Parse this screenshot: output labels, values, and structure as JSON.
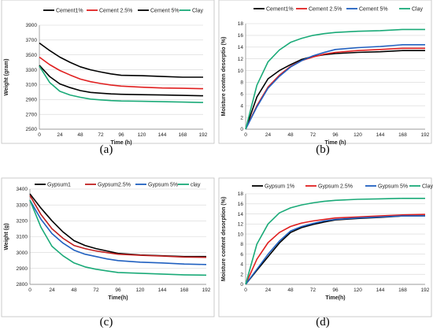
{
  "chart_data": [
    {
      "panel": "a",
      "caption": "(a)",
      "type": "line",
      "xlabel": "Time (h)",
      "ylabel": "Weight (gram)",
      "xlim": [
        0,
        192
      ],
      "ylim": [
        2500,
        3900
      ],
      "xticks": [
        0,
        24,
        48,
        72,
        96,
        120,
        144,
        168,
        192
      ],
      "yticks": [
        2500,
        2700,
        2900,
        3100,
        3300,
        3500,
        3700,
        3900
      ],
      "grid": "horizontal",
      "legend": "top",
      "series": [
        {
          "name": "Cement1%",
          "color": "#000000",
          "x": [
            0,
            12,
            24,
            36,
            48,
            60,
            72,
            84,
            96,
            120,
            144,
            168,
            192
          ],
          "y": [
            3660,
            3560,
            3470,
            3400,
            3340,
            3300,
            3270,
            3245,
            3225,
            3220,
            3210,
            3200,
            3200
          ]
        },
        {
          "name": "Cement 2.5%",
          "color": "#e02020",
          "x": [
            0,
            12,
            24,
            36,
            48,
            60,
            72,
            84,
            96,
            120,
            144,
            168,
            192
          ],
          "y": [
            3470,
            3370,
            3290,
            3230,
            3175,
            3140,
            3115,
            3095,
            3080,
            3065,
            3055,
            3050,
            3045
          ]
        },
        {
          "name": "Cement 5%",
          "color": "#000000",
          "x": [
            0,
            12,
            24,
            36,
            48,
            60,
            72,
            84,
            96,
            120,
            144,
            168,
            192
          ],
          "y": [
            3360,
            3210,
            3110,
            3060,
            3020,
            2995,
            2985,
            2975,
            2970,
            2965,
            2960,
            2955,
            2950
          ]
        },
        {
          "name": "Clay",
          "color": "#1aaa78",
          "x": [
            0,
            12,
            24,
            36,
            48,
            60,
            72,
            84,
            96,
            120,
            144,
            168,
            192
          ],
          "y": [
            3350,
            3130,
            3010,
            2960,
            2930,
            2905,
            2895,
            2885,
            2880,
            2875,
            2870,
            2865,
            2860
          ]
        }
      ]
    },
    {
      "panel": "b",
      "caption": "(b)",
      "type": "line",
      "xlabel": "Time (h)",
      "ylabel": "Moisture conten desorptio (%)",
      "xlim": [
        0,
        192
      ],
      "ylim": [
        0,
        18
      ],
      "xticks": [
        0,
        24,
        48,
        72,
        96,
        120,
        144,
        168,
        192
      ],
      "yticks": [
        0,
        2,
        4,
        6,
        8,
        10,
        12,
        14,
        16,
        18
      ],
      "grid": "horizontal",
      "legend": "top",
      "series": [
        {
          "name": "Cement1%",
          "color": "#000000",
          "x": [
            0,
            12,
            24,
            36,
            48,
            60,
            72,
            84,
            96,
            120,
            144,
            168,
            192
          ],
          "y": [
            0,
            5.5,
            8.6,
            10.0,
            11.0,
            11.9,
            12.4,
            12.7,
            12.9,
            13.1,
            13.2,
            13.4,
            13.4
          ]
        },
        {
          "name": "Cement 2.5%",
          "color": "#e02020",
          "x": [
            0,
            12,
            24,
            36,
            48,
            60,
            72,
            84,
            96,
            120,
            144,
            168,
            192
          ],
          "y": [
            0,
            4.0,
            7.2,
            9.2,
            10.7,
            11.7,
            12.3,
            12.8,
            13.1,
            13.4,
            13.6,
            13.8,
            13.8
          ]
        },
        {
          "name": "Cement 5%",
          "color": "#2060c0",
          "x": [
            0,
            12,
            24,
            36,
            48,
            60,
            72,
            84,
            96,
            120,
            144,
            168,
            192
          ],
          "y": [
            0,
            3.8,
            7.0,
            9.0,
            10.6,
            11.7,
            12.5,
            13.1,
            13.6,
            13.9,
            14.1,
            14.4,
            14.4
          ]
        },
        {
          "name": "Clay",
          "color": "#1aaa78",
          "x": [
            0,
            12,
            24,
            36,
            48,
            60,
            72,
            84,
            96,
            120,
            144,
            168,
            192
          ],
          "y": [
            0,
            7.5,
            11.5,
            13.5,
            14.8,
            15.5,
            16.0,
            16.3,
            16.5,
            16.7,
            16.8,
            17.0,
            17.0
          ]
        }
      ]
    },
    {
      "panel": "c",
      "caption": "(c)",
      "type": "line",
      "xlabel": "Time(h)",
      "ylabel": "Weight (g)",
      "xlim": [
        0,
        192
      ],
      "ylim": [
        2800,
        3400
      ],
      "xticks": [
        0,
        24,
        48,
        72,
        96,
        120,
        144,
        168,
        192
      ],
      "yticks": [
        2800,
        2900,
        3000,
        3100,
        3200,
        3300,
        3400
      ],
      "grid": "horizontal",
      "legend": "top",
      "series": [
        {
          "name": "Gypsum1",
          "color": "#000000",
          "x": [
            0,
            12,
            24,
            36,
            48,
            60,
            72,
            84,
            96,
            120,
            144,
            168,
            192
          ],
          "y": [
            3370,
            3280,
            3200,
            3130,
            3075,
            3045,
            3025,
            3010,
            2995,
            2985,
            2980,
            2975,
            2975
          ]
        },
        {
          "name": "Gypsum2.5%",
          "color": "#c02020",
          "x": [
            0,
            12,
            24,
            36,
            48,
            60,
            72,
            84,
            96,
            120,
            144,
            168,
            192
          ],
          "y": [
            3360,
            3240,
            3150,
            3090,
            3045,
            3025,
            3010,
            3000,
            2990,
            2983,
            2978,
            2972,
            2970
          ]
        },
        {
          "name": "Gypsum 5%",
          "color": "#2060c0",
          "x": [
            0,
            12,
            24,
            36,
            48,
            60,
            72,
            84,
            96,
            120,
            144,
            168,
            192
          ],
          "y": [
            3330,
            3210,
            3120,
            3060,
            3015,
            2990,
            2975,
            2960,
            2950,
            2940,
            2935,
            2928,
            2925
          ]
        },
        {
          "name": "clay",
          "color": "#1aaa78",
          "x": [
            0,
            12,
            24,
            36,
            48,
            60,
            72,
            84,
            96,
            120,
            144,
            168,
            192
          ],
          "y": [
            3330,
            3160,
            3040,
            2980,
            2935,
            2910,
            2895,
            2885,
            2875,
            2870,
            2865,
            2860,
            2858
          ]
        }
      ]
    },
    {
      "panel": "d",
      "caption": "(d)",
      "type": "line",
      "xlabel": "Time(h)",
      "ylabel": "Moisture content desorption (%)",
      "xlim": [
        0,
        192
      ],
      "ylim": [
        0,
        18
      ],
      "xticks": [
        0,
        24,
        48,
        72,
        96,
        120,
        144,
        168,
        192
      ],
      "yticks": [
        0,
        2,
        4,
        6,
        8,
        10,
        12,
        14,
        16,
        18
      ],
      "grid": "horizontal",
      "legend": "top",
      "series": [
        {
          "name": "Gypsum 1%",
          "color": "#000000",
          "x": [
            0,
            12,
            24,
            36,
            48,
            60,
            72,
            84,
            96,
            120,
            144,
            168,
            192
          ],
          "y": [
            0,
            2.8,
            5.5,
            8.2,
            10.3,
            11.3,
            11.9,
            12.4,
            12.8,
            13.1,
            13.3,
            13.6,
            13.6
          ]
        },
        {
          "name": "Gypsum 2.5%",
          "color": "#e02020",
          "x": [
            0,
            12,
            24,
            36,
            48,
            60,
            72,
            84,
            96,
            120,
            144,
            168,
            192
          ],
          "y": [
            0,
            5.0,
            8.3,
            10.3,
            11.5,
            12.2,
            12.6,
            12.9,
            13.2,
            13.4,
            13.6,
            13.8,
            13.9
          ]
        },
        {
          "name": "Gypsum 5%",
          "color": "#2060c0",
          "x": [
            0,
            12,
            24,
            36,
            48,
            60,
            72,
            84,
            96,
            120,
            144,
            168,
            192
          ],
          "y": [
            0,
            3.0,
            6.0,
            8.6,
            10.6,
            11.5,
            12.1,
            12.6,
            12.9,
            13.2,
            13.4,
            13.6,
            13.6
          ]
        },
        {
          "name": "Clay",
          "color": "#1aaa78",
          "x": [
            0,
            12,
            24,
            36,
            48,
            60,
            72,
            84,
            96,
            120,
            144,
            168,
            192
          ],
          "y": [
            0,
            8.0,
            12.0,
            14.2,
            15.2,
            15.8,
            16.2,
            16.5,
            16.7,
            16.9,
            17.0,
            17.1,
            17.1
          ]
        }
      ]
    }
  ]
}
